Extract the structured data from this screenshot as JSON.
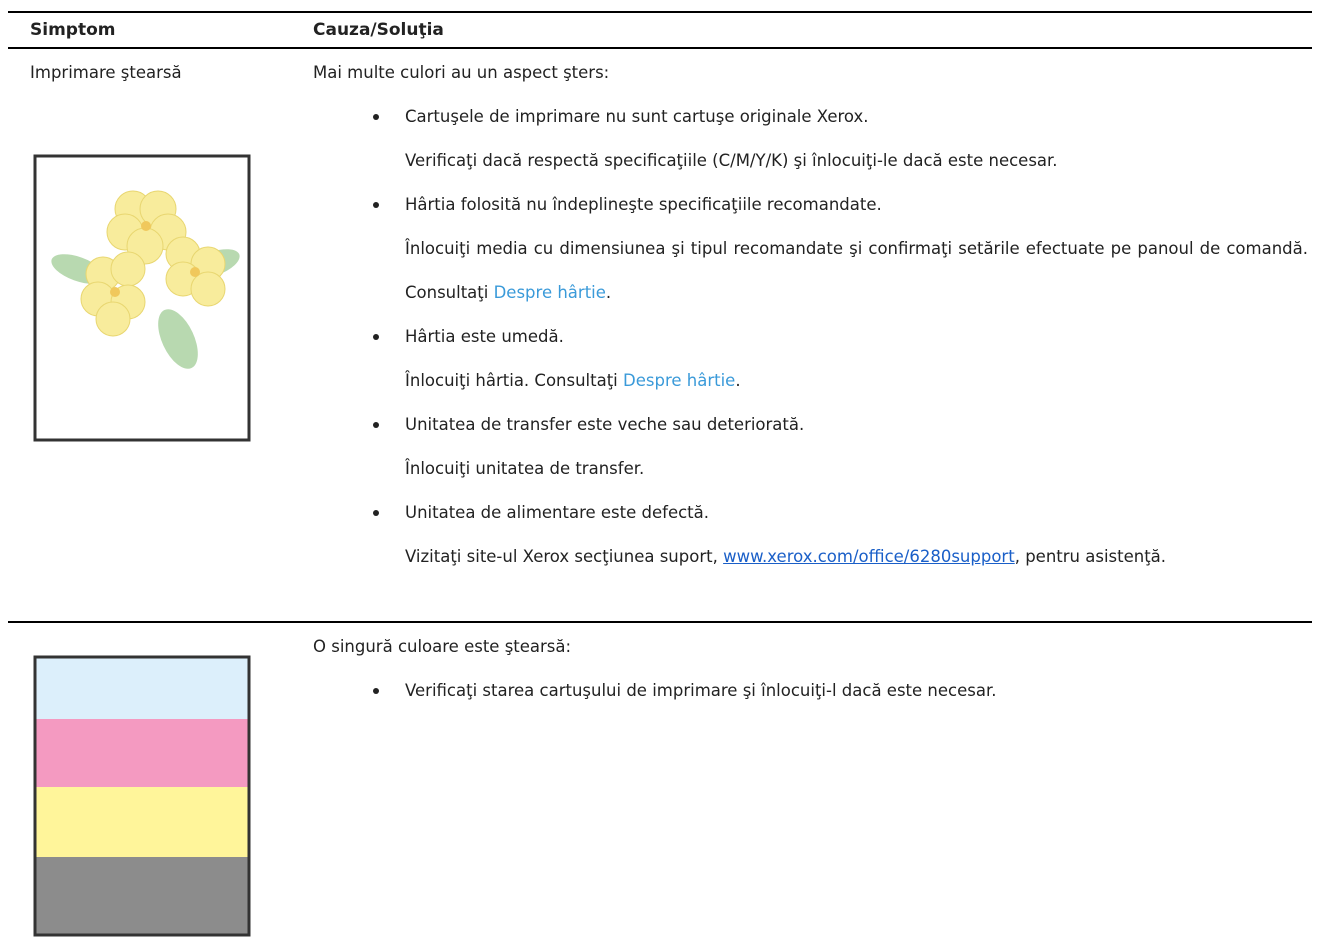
{
  "table": {
    "header": [
      "Simptom",
      "Cauza/Soluţia"
    ],
    "rows": [
      {
        "symptom": "Imprimare ştearsă",
        "intro": "Mai multe culori au un aspect şters:",
        "items": [
          {
            "problem": "Cartuşele de imprimare nu sunt cartuşe originale Xerox.",
            "solution": [
              {
                "text": "Verificaţi dacă respectă specificaţiile (C/M/Y/K) şi înlocuiţi-le dacă este necesar."
              }
            ]
          },
          {
            "problem": "Hârtia folosită nu îndeplineşte specificaţiile recomandate.",
            "solution": [
              {
                "text": "Înlocuiţi media cu dimensiunea şi tipul recomandate şi confirmaţi setările efectuate pe panoul de comandă. Consultaţi "
              },
              {
                "link": "Despre hârtie"
              },
              {
                "text": "."
              }
            ]
          },
          {
            "problem": "Hârtia este umedă.",
            "solution": [
              {
                "text": "Înlocuiţi hârtia. Consultaţi "
              },
              {
                "link": "Despre hârtie"
              },
              {
                "text": "."
              }
            ]
          },
          {
            "problem": "Unitatea de transfer este veche sau deteriorată.",
            "solution": [
              {
                "text": "Înlocuiţi unitatea de transfer."
              }
            ]
          },
          {
            "problem": "Unitatea de alimentare este defectă.",
            "solution": [
              {
                "text": "Vizitaţi site-ul Xerox secţiunea suport, "
              },
              {
                "url": "www.xerox.com/office/6280support"
              },
              {
                "text": ", pentru asistenţă."
              }
            ]
          }
        ]
      },
      {
        "intro": "O singură culoare este ştearsă:",
        "items": [
          {
            "problem": "Verificaţi starea cartuşului de imprimare şi înlocuiţi-l dacă este necesar."
          }
        ]
      }
    ]
  }
}
